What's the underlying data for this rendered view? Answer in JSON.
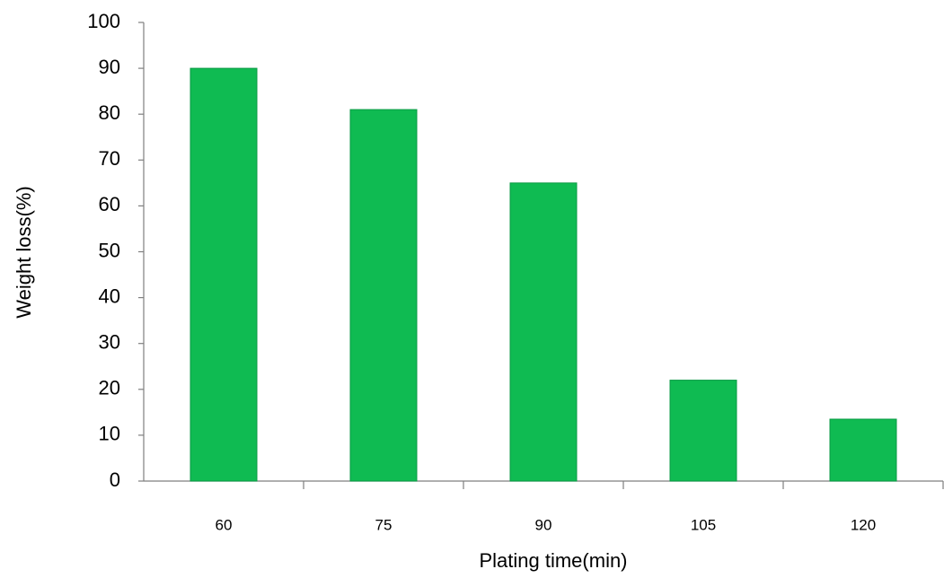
{
  "chart_data": {
    "type": "bar",
    "xlabel": "Plating time(min)",
    "ylabel": "Weight loss(%)",
    "categories": [
      "60",
      "75",
      "90",
      "105",
      "120"
    ],
    "values": [
      90,
      81,
      65,
      22,
      13.5
    ],
    "color": "#0fbb52",
    "ylim": [
      0,
      100
    ],
    "yticks": [
      0,
      10,
      20,
      30,
      40,
      50,
      60,
      70,
      80,
      90,
      100
    ],
    "grid": false
  }
}
